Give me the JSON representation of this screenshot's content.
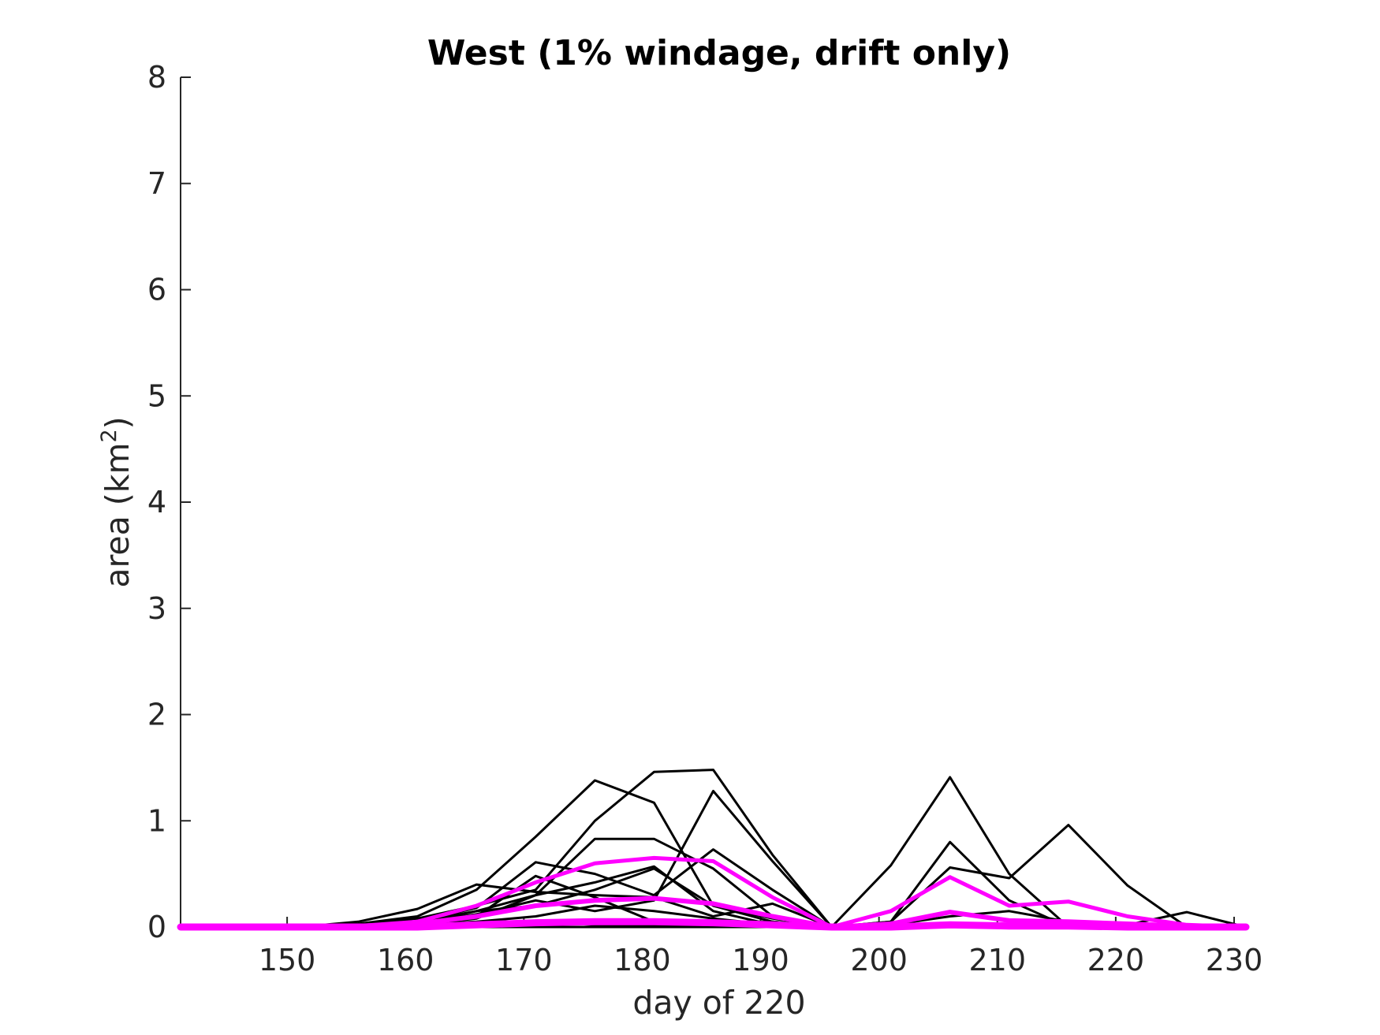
{
  "chart_data": {
    "type": "line",
    "title": "West (1% windage, drift only)",
    "xlabel": "day of 220",
    "ylabel": {
      "text": "area (km",
      "sup": "2",
      "close": ")"
    },
    "xlim": [
      141,
      231
    ],
    "ylim": [
      0,
      8
    ],
    "xticks": [
      150,
      160,
      170,
      180,
      190,
      200,
      210,
      220,
      230
    ],
    "yticks": [
      0,
      1,
      2,
      3,
      4,
      5,
      6,
      7,
      8
    ],
    "grid": false,
    "legend": "none",
    "x": [
      141,
      146,
      151,
      156,
      161,
      166,
      171,
      176,
      181,
      186,
      191,
      196,
      201,
      206,
      211,
      216,
      221,
      226,
      231
    ],
    "series": [
      {
        "color": "#000000",
        "width": 3,
        "values": [
          0,
          0,
          0,
          0.05,
          0.17,
          0.4,
          0.33,
          0.3,
          0.28,
          0.1,
          0.22,
          0,
          0,
          0,
          0,
          0,
          0,
          0,
          0
        ]
      },
      {
        "color": "#000000",
        "width": 3,
        "values": [
          0,
          0,
          0,
          0.03,
          0.1,
          0.35,
          0.85,
          1.38,
          1.17,
          0.2,
          0.08,
          0,
          0,
          0,
          0,
          0,
          0,
          0,
          0
        ]
      },
      {
        "color": "#000000",
        "width": 3,
        "values": [
          0,
          0,
          0,
          0.02,
          0.08,
          0.2,
          0.35,
          1.0,
          1.46,
          1.48,
          0.68,
          0,
          0,
          0,
          0,
          0,
          0,
          0,
          0
        ]
      },
      {
        "color": "#000000",
        "width": 3,
        "values": [
          0,
          0,
          0,
          0.01,
          0.05,
          0.15,
          0.3,
          0.83,
          0.83,
          0.55,
          0.1,
          0,
          0,
          0,
          0,
          0,
          0,
          0,
          0
        ]
      },
      {
        "color": "#000000",
        "width": 3,
        "values": [
          0,
          0,
          0,
          0.01,
          0.04,
          0.12,
          0.25,
          0.15,
          0.25,
          1.28,
          0.62,
          0,
          0,
          0,
          0,
          0,
          0,
          0,
          0
        ]
      },
      {
        "color": "#000000",
        "width": 3,
        "values": [
          0,
          0,
          0,
          0.01,
          0.05,
          0.18,
          0.61,
          0.5,
          0.3,
          0.73,
          0.35,
          0,
          0,
          0,
          0,
          0,
          0,
          0,
          0
        ]
      },
      {
        "color": "#000000",
        "width": 3,
        "values": [
          0,
          0,
          0,
          0.01,
          0.04,
          0.1,
          0.48,
          0.28,
          0.05,
          0.05,
          0.05,
          0,
          0,
          0,
          0,
          0,
          0,
          0,
          0
        ]
      },
      {
        "color": "#000000",
        "width": 3,
        "values": [
          0,
          0,
          0,
          0.01,
          0.03,
          0.15,
          0.2,
          0.35,
          0.55,
          0.2,
          0.05,
          0,
          0,
          0,
          0,
          0,
          0,
          0,
          0
        ]
      },
      {
        "color": "#000000",
        "width": 3,
        "values": [
          0,
          0,
          0,
          0,
          0.02,
          0.05,
          0.1,
          0.2,
          0.15,
          0.08,
          0.02,
          0,
          0,
          0,
          0,
          0,
          0,
          0,
          0
        ]
      },
      {
        "color": "#000000",
        "width": 3,
        "values": [
          0,
          0,
          0,
          0,
          0.02,
          0.08,
          0.3,
          0.42,
          0.57,
          0.15,
          0.02,
          0,
          0,
          0,
          0,
          0,
          0,
          0,
          0
        ]
      },
      {
        "color": "#000000",
        "width": 3,
        "values": [
          0,
          0,
          0,
          0,
          0.01,
          0.03,
          0.05,
          0.02,
          0.02,
          0.02,
          0,
          0,
          0,
          0,
          0,
          0,
          0,
          0,
          0
        ]
      },
      {
        "color": "#000000",
        "width": 3,
        "values": [
          0,
          0,
          0,
          0,
          0,
          0,
          0,
          0,
          0,
          0,
          0,
          0,
          0.58,
          1.41,
          0.5,
          0,
          0,
          0,
          0
        ]
      },
      {
        "color": "#000000",
        "width": 3,
        "values": [
          0,
          0,
          0,
          0,
          0,
          0,
          0,
          0,
          0,
          0,
          0,
          0,
          0.05,
          0.8,
          0.25,
          0,
          0,
          0,
          0
        ]
      },
      {
        "color": "#000000",
        "width": 3,
        "values": [
          0,
          0,
          0,
          0,
          0,
          0,
          0,
          0,
          0,
          0,
          0,
          0,
          0.05,
          0.56,
          0.46,
          0.96,
          0.39,
          0,
          0
        ]
      },
      {
        "color": "#000000",
        "width": 3,
        "values": [
          0,
          0,
          0,
          0,
          0,
          0,
          0,
          0,
          0,
          0,
          0,
          0,
          0.02,
          0.1,
          0.15,
          0.05,
          0.02,
          0.14,
          0
        ]
      },
      {
        "color": "#ff00ff",
        "width": 5,
        "values": [
          0,
          0,
          0,
          0.01,
          0.05,
          0.2,
          0.42,
          0.6,
          0.65,
          0.62,
          0.28,
          0,
          0.15,
          0.47,
          0.2,
          0.24,
          0.1,
          0.02,
          0
        ]
      },
      {
        "color": "#ff00ff",
        "width": 6,
        "values": [
          0,
          0,
          0,
          0.01,
          0.03,
          0.1,
          0.2,
          0.25,
          0.27,
          0.22,
          0.1,
          0,
          0.03,
          0.14,
          0.06,
          0.05,
          0.03,
          0.01,
          0
        ]
      },
      {
        "color": "#ff00ff",
        "width": 9,
        "values": [
          0,
          0,
          0,
          0,
          0,
          0.02,
          0.04,
          0.05,
          0.05,
          0.04,
          0.02,
          0,
          0,
          0.02,
          0.01,
          0.01,
          0,
          0,
          0
        ]
      }
    ]
  }
}
